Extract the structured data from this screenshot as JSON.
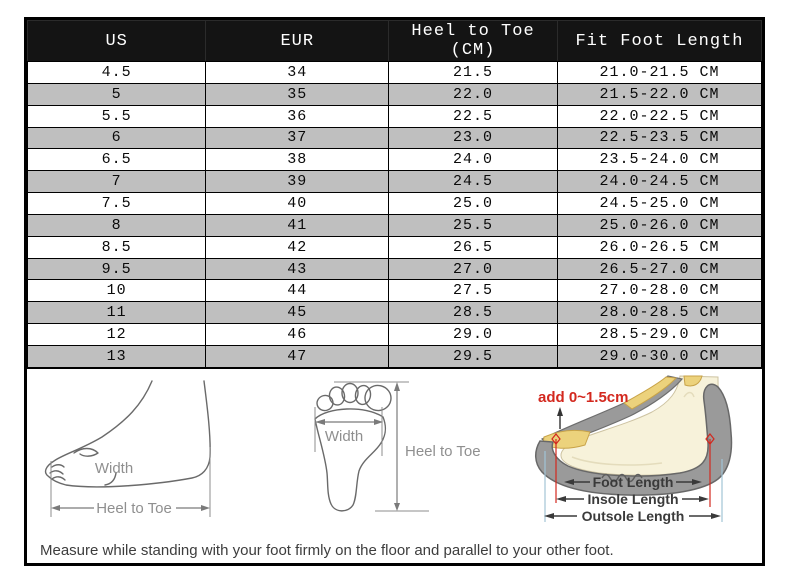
{
  "chart_data": {
    "type": "table",
    "columns": [
      "US",
      "EUR",
      "Heel to Toe (CM)",
      "Fit Foot Length"
    ],
    "rows": [
      [
        "4.5",
        "34",
        "21.5",
        "21.0-21.5 CM"
      ],
      [
        "5",
        "35",
        "22.0",
        "21.5-22.0 CM"
      ],
      [
        "5.5",
        "36",
        "22.5",
        "22.0-22.5 CM"
      ],
      [
        "6",
        "37",
        "23.0",
        "22.5-23.5 CM"
      ],
      [
        "6.5",
        "38",
        "24.0",
        "23.5-24.0 CM"
      ],
      [
        "7",
        "39",
        "24.5",
        "24.0-24.5 CM"
      ],
      [
        "7.5",
        "40",
        "25.0",
        "24.5-25.0 CM"
      ],
      [
        "8",
        "41",
        "25.5",
        "25.0-26.0 CM"
      ],
      [
        "8.5",
        "42",
        "26.5",
        "26.0-26.5 CM"
      ],
      [
        "9.5",
        "43",
        "27.0",
        "26.5-27.0 CM"
      ],
      [
        "10",
        "44",
        "27.5",
        "27.0-28.0 CM"
      ],
      [
        "11",
        "45",
        "28.5",
        "28.0-28.5 CM"
      ],
      [
        "12",
        "46",
        "29.0",
        "28.5-29.0 CM"
      ],
      [
        "13",
        "47",
        "29.5",
        "29.0-30.0 CM"
      ]
    ]
  },
  "diagrams": {
    "side_foot": {
      "width_label": "Width",
      "heel_to_toe_label": "Heel to Toe"
    },
    "footprint": {
      "width_label": "Width",
      "heel_to_toe_label": "Heel to Toe"
    },
    "shoe_cross_section": {
      "add_note": "add 0~1.5cm",
      "foot_length_label": "Foot Length",
      "insole_length_label": "Insole Length",
      "outsole_length_label": "Outsole Length"
    }
  },
  "footer_note": "Measure while standing with your foot firmly on the floor and parallel to your other foot.",
  "colors": {
    "table_header_bg": "#141414",
    "table_header_text": "#ffffff",
    "table_row_alt_bg": "#bfbfbf",
    "table_border": "#000000",
    "diagram_outline": "#6a6a6a",
    "diagram_label": "#8f8f8f",
    "measure_text": "#3a3a3a",
    "accent_red": "#d3281e",
    "insole_yellow": "#ecd27c",
    "outsole_gray": "#9a9a9a",
    "foot_cream": "#f7f2da",
    "guide_blue": "#a2c4d6"
  }
}
